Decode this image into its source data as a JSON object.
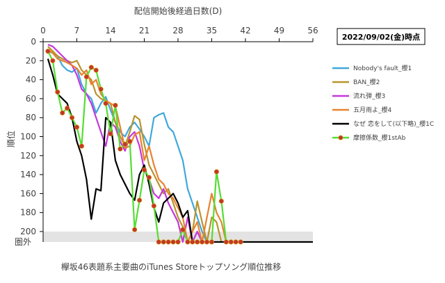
{
  "chart_data": {
    "type": "line",
    "title": "配信開始後経過日数(D)",
    "ylabel": "順位",
    "caption": "欅坂46表題系主要曲のiTunes Storeトップソング順位推移",
    "date_label": "2022/09/02(金)時点",
    "out_of_rank_label": "圏外",
    "out_of_rank_value": 211,
    "xlim": [
      0,
      56
    ],
    "ylim": [
      0,
      211
    ],
    "y_inverted": true,
    "x_ticks": [
      0,
      7,
      14,
      21,
      28,
      35,
      42,
      49,
      56
    ],
    "y_ticks": [
      0,
      20,
      40,
      60,
      80,
      100,
      120,
      140,
      160,
      180,
      200
    ],
    "grid": false,
    "legend_position": "right",
    "series": [
      {
        "name": "Nobody's fault_櫻1",
        "color": "#3fa8dc",
        "marker": false,
        "x": [
          1,
          2,
          3,
          4,
          5,
          6,
          7,
          8,
          9,
          10,
          11,
          12,
          13,
          14,
          15,
          16,
          17,
          18,
          19,
          20,
          21,
          22,
          23,
          24,
          25,
          26,
          27,
          28,
          29,
          30,
          31,
          32,
          33,
          34
        ],
        "y": [
          10,
          12,
          15,
          25,
          30,
          32,
          28,
          45,
          55,
          60,
          75,
          65,
          58,
          72,
          85,
          95,
          100,
          90,
          85,
          92,
          100,
          110,
          80,
          77,
          75,
          90,
          95,
          110,
          125,
          155,
          170,
          185,
          200,
          211
        ]
      },
      {
        "name": "BAN_櫻2",
        "color": "#b8932d",
        "marker": false,
        "x": [
          1,
          2,
          3,
          4,
          5,
          6,
          7,
          8,
          9,
          10,
          11,
          12,
          13,
          14,
          15,
          16,
          17,
          18,
          19,
          20,
          21,
          22,
          23,
          24,
          25,
          26,
          27,
          28,
          29,
          30,
          31,
          32,
          33,
          34,
          35,
          36,
          37
        ],
        "y": [
          5,
          10,
          15,
          18,
          20,
          22,
          20,
          30,
          35,
          40,
          55,
          60,
          62,
          65,
          85,
          100,
          110,
          95,
          78,
          82,
          108,
          130,
          140,
          150,
          160,
          155,
          170,
          185,
          195,
          211,
          200,
          168,
          190,
          211,
          185,
          190,
          211
        ]
      },
      {
        "name": "流れ弾_櫻3",
        "color": "#c437dc",
        "marker": false,
        "x": [
          1,
          2,
          3,
          4,
          5,
          6,
          7,
          8,
          9,
          10,
          11,
          12,
          13,
          14,
          15,
          16,
          17,
          18,
          19,
          20,
          21,
          22,
          23,
          24,
          25,
          26,
          27,
          28,
          29,
          30,
          31,
          32,
          33,
          34
        ],
        "y": [
          3,
          5,
          10,
          15,
          20,
          25,
          35,
          50,
          55,
          65,
          80,
          95,
          110,
          85,
          90,
          105,
          115,
          100,
          95,
          110,
          135,
          145,
          160,
          165,
          155,
          170,
          180,
          190,
          211,
          185,
          211,
          200,
          211,
          211
        ]
      },
      {
        "name": "五月雨よ_櫻4",
        "color": "#e8822e",
        "marker": false,
        "x": [
          1,
          2,
          3,
          4,
          5,
          6,
          7,
          8,
          9,
          10,
          11,
          12,
          13,
          14,
          15,
          16,
          17,
          18,
          19,
          20,
          21,
          22,
          23,
          24,
          25,
          26,
          27,
          28,
          29,
          30,
          31,
          32,
          33,
          34,
          35,
          36,
          37,
          38,
          39
        ],
        "y": [
          8,
          12,
          18,
          20,
          22,
          25,
          28,
          35,
          30,
          45,
          40,
          55,
          62,
          65,
          68,
          90,
          112,
          110,
          98,
          95,
          125,
          110,
          130,
          145,
          150,
          160,
          165,
          175,
          185,
          211,
          200,
          190,
          211,
          185,
          160,
          180,
          190,
          211,
          211
        ]
      },
      {
        "name": "なぜ 恋をして(以下略)_櫻1C",
        "color": "#000000",
        "marker": false,
        "x": [
          1,
          2,
          3,
          4,
          5,
          6,
          7,
          8,
          9,
          10,
          11,
          12,
          13,
          14,
          15,
          16,
          17,
          18,
          19,
          20,
          21,
          22,
          23,
          24,
          25,
          26,
          27,
          28,
          29,
          30,
          31,
          32,
          33,
          34,
          35,
          36,
          37,
          38,
          39,
          40,
          41,
          42,
          43,
          44,
          45,
          46,
          47,
          48,
          49,
          50,
          51,
          52,
          53,
          54,
          55,
          56
        ],
        "y": [
          18,
          35,
          55,
          60,
          65,
          80,
          105,
          120,
          145,
          187,
          155,
          157,
          80,
          85,
          125,
          140,
          150,
          160,
          167,
          140,
          130,
          150,
          175,
          190,
          170,
          165,
          160,
          170,
          185,
          178,
          211,
          211,
          211,
          211,
          211,
          211,
          211,
          211,
          211,
          211,
          211,
          211,
          211,
          211,
          211,
          211,
          211,
          211,
          211,
          211,
          211,
          211,
          211,
          211,
          211,
          211
        ]
      },
      {
        "name": "摩擦係数_櫻1stAb",
        "color": "#55dd33",
        "marker": true,
        "marker_color": "#c0392b",
        "x": [
          1,
          2,
          3,
          4,
          5,
          6,
          7,
          8,
          9,
          10,
          11,
          12,
          13,
          14,
          15,
          16,
          17,
          18,
          19,
          20,
          21,
          22,
          23,
          24,
          25,
          26,
          27,
          28,
          29,
          30,
          31,
          32,
          33,
          34,
          35,
          36,
          37,
          38,
          39,
          40,
          41
        ],
        "y": [
          10,
          20,
          53,
          75,
          70,
          80,
          90,
          110,
          37,
          27,
          30,
          50,
          65,
          97,
          67,
          113,
          108,
          105,
          198,
          167,
          135,
          143,
          173,
          211,
          211,
          211,
          211,
          211,
          198,
          211,
          211,
          211,
          211,
          211,
          211,
          137,
          168,
          211,
          211,
          211,
          211
        ]
      }
    ]
  }
}
